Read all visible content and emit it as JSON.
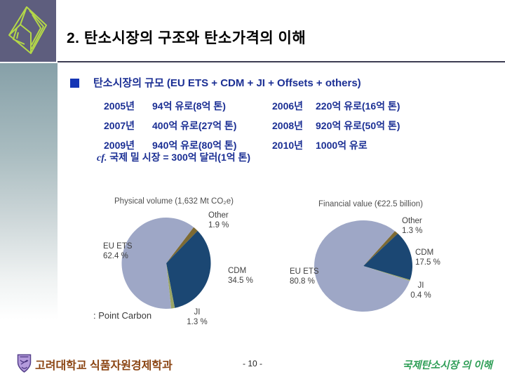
{
  "slide": {
    "title": "2. 탄소시장의 구조와 탄소가격의 이해",
    "section": {
      "heading": "탄소시장의 규모 (EU ETS + CDM + JI + Offsets + others)",
      "table": {
        "rows": [
          [
            "2005년",
            "94억 유로(8억 톤)",
            "2006년",
            "220억 유로(16억 톤)"
          ],
          [
            "2007년",
            "400억 유로(27억 톤)",
            "2008년",
            "920억 유로(50억 톤)"
          ],
          [
            "2009년",
            "940억 유로(80억 톤)",
            "2010년",
            "1000억 유로"
          ]
        ]
      },
      "cf_prefix": "cf.",
      "cf_note": " 국제 밀 시장 = 300억 달러(1억 톤)"
    },
    "footer": {
      "affiliation": "고려대학교 식품자원경제학과",
      "page_number": "- 10 -",
      "course_title": "국제탄소시장 의 이해"
    }
  },
  "colors": {
    "navy_text": "#1b2f94",
    "bullet_blue": "#1535b5",
    "emblem_bg": "#5e5e7e",
    "emblem_line": "#b4d848",
    "band_top": "#86a0a8",
    "footer_affiliation": "#8b4513",
    "footer_course_green": "#2f9e57",
    "pie_eu_ets": "#9ea7c6",
    "pie_cdm": "#1b4773",
    "pie_other": "#7d6a33",
    "pie_ji": "#9aa566"
  },
  "chart_data": [
    {
      "type": "pie",
      "title": "Physical volume (1,632 Mt CO₂e)",
      "start_angle_deg": 38,
      "legend_position": "callout-labels",
      "slices": [
        {
          "label": "Other",
          "value": 1.9,
          "pct_label": "1.9 %",
          "color": "#7d6a33"
        },
        {
          "label": "CDM",
          "value": 34.5,
          "pct_label": "34.5 %",
          "color": "#1b4773"
        },
        {
          "label": "JI",
          "value": 1.3,
          "pct_label": "1.3 %",
          "color": "#9aa566"
        },
        {
          "label": "EU ETS",
          "value": 62.4,
          "pct_label": "62.4 %",
          "color": "#9ea7c6"
        }
      ],
      "source_note": ": Point Carbon"
    },
    {
      "type": "pie",
      "title": "Financial value (€22.5 billion)",
      "start_angle_deg": 40,
      "legend_position": "callout-labels",
      "slices": [
        {
          "label": "Other",
          "value": 1.3,
          "pct_label": "1.3 %",
          "color": "#7d6a33"
        },
        {
          "label": "CDM",
          "value": 17.5,
          "pct_label": "17.5 %",
          "color": "#1b4773"
        },
        {
          "label": "JI",
          "value": 0.4,
          "pct_label": "0.4 %",
          "color": "#9aa566"
        },
        {
          "label": "EU ETS",
          "value": 80.8,
          "pct_label": "80.8 %",
          "color": "#9ea7c6"
        }
      ]
    }
  ]
}
